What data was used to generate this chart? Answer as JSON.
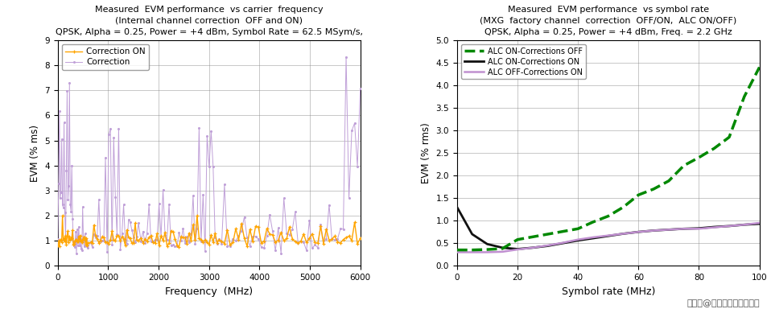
{
  "left": {
    "title": "Measured  EVM performance  vs carrier  frequency",
    "subtitle1": "(Internal channel correction  OFF and ON)",
    "subtitle2": "QPSK, Alpha = 0.25, Power = +4 dBm, Symbol Rate = 62.5 MSym/s,",
    "xlabel": "Frequency  (MHz)",
    "ylabel": "EVM (% ms)",
    "xlim": [
      0,
      6000
    ],
    "ylim": [
      0,
      9
    ],
    "xticks": [
      0,
      1000,
      2000,
      3000,
      4000,
      5000,
      6000
    ],
    "yticks": [
      0,
      1,
      2,
      3,
      4,
      5,
      6,
      7,
      8,
      9
    ],
    "legend": [
      "Correction ON",
      "Correction"
    ],
    "color_on": "#FFA500",
    "color_off": "#C0A0D8",
    "bg_color": "#FFFFFF"
  },
  "right": {
    "title": "Measured  EVM performance  vs symbol rate",
    "subtitle1": "(MXG  factory channel  correction  OFF/ON,  ALC ON/OFF)",
    "subtitle2": "QPSK, Alpha = 0.25, Power = +4 dBm, Freq. = 2.2 GHz",
    "xlabel": "Symbol rate (MHz)",
    "ylabel": "EVM (% rms)",
    "xlim": [
      0,
      100
    ],
    "ylim": [
      0,
      5
    ],
    "xticks": [
      0,
      20,
      40,
      60,
      80,
      100
    ],
    "yticks": [
      0,
      0.5,
      1.0,
      1.5,
      2.0,
      2.5,
      3.0,
      3.5,
      4.0,
      4.5,
      5.0
    ],
    "legend": [
      "ALC ON-Corrections OFF",
      "ALC ON-Corrections ON",
      "ALC OFF-Corrections ON"
    ],
    "color_alc_on_corr_off": "#008800",
    "color_alc_on_corr_on": "#111111",
    "color_alc_off_corr_on": "#C090D0",
    "bg_color": "#FFFFFF"
  },
  "watermark": "搜狐号@苏州新利通仪器仪表"
}
